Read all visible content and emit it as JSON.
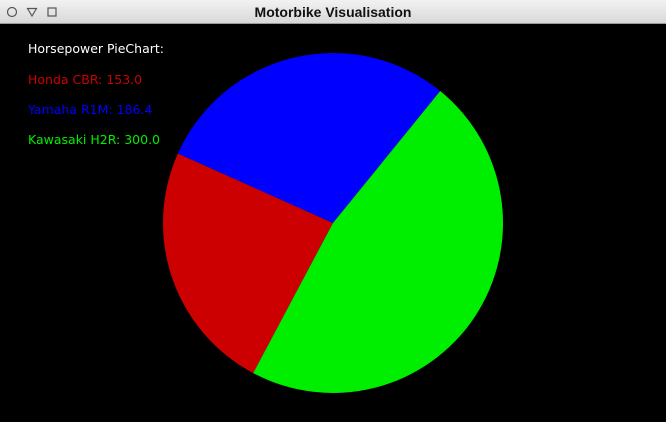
{
  "window": {
    "title": "Motorbike Visualisation",
    "controls": [
      "close-icon",
      "minimize-icon",
      "maximize-icon"
    ]
  },
  "chart_data": {
    "type": "pie",
    "title": "Horsepower PieChart:",
    "labels": [
      "Honda CBR",
      "Yamaha R1M",
      "Kawasaki H2R"
    ],
    "values": [
      153.0,
      186.4,
      300.0
    ],
    "value_texts": [
      "Honda CBR: 153.0",
      "Yamaha R1M: 186.4",
      "Kawasaki H2R: 300.0"
    ],
    "colors": [
      "#cc0000",
      "#0000ff",
      "#00ee00"
    ]
  }
}
